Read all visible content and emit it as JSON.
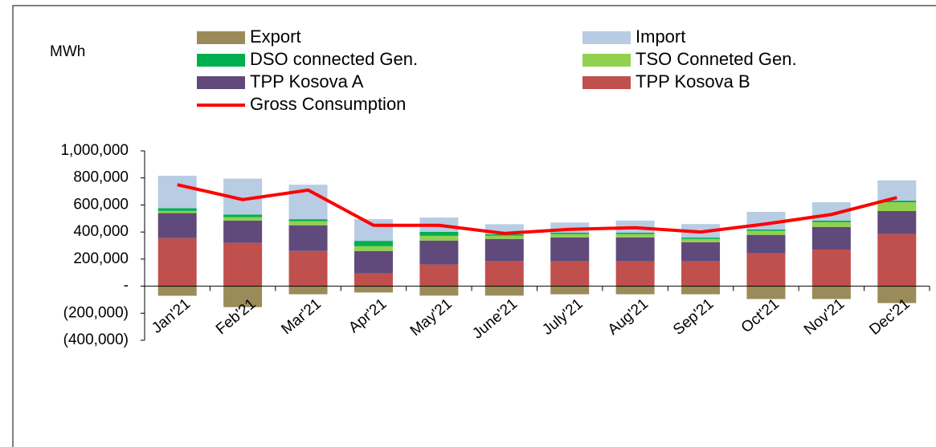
{
  "chart_data": {
    "type": "bar",
    "y_label": "MWh",
    "categories": [
      "Jan'21",
      "Feb'21",
      "Mar'21",
      "Apr'21",
      "May'21",
      "June'21",
      "July'21",
      "Aug'21",
      "Sep'21",
      "Oct'21",
      "Nov'21",
      "Dec'21"
    ],
    "series": [
      {
        "name": "Export",
        "color": "#9b8b5a",
        "values": [
          -71000,
          -155000,
          -60000,
          -47000,
          -70000,
          -70000,
          -60000,
          -60000,
          -60000,
          -95000,
          -95000,
          -125000
        ]
      },
      {
        "name": "Import",
        "color": "#b8cce4",
        "values": [
          240000,
          265000,
          255000,
          160000,
          105000,
          75000,
          75000,
          90000,
          100000,
          130000,
          135000,
          150000
        ]
      },
      {
        "name": "DSO connected Gen.",
        "color": "#00b050",
        "values": [
          20000,
          20000,
          15000,
          40000,
          30000,
          10000,
          10000,
          10000,
          10000,
          10000,
          12000,
          12000
        ]
      },
      {
        "name": "TSO Conneted Gen.",
        "color": "#92d050",
        "values": [
          16000,
          25000,
          30000,
          35000,
          35000,
          24000,
          24000,
          24000,
          24000,
          30000,
          35000,
          65000
        ]
      },
      {
        "name": "TPP Kosova A",
        "color": "#604a7b",
        "values": [
          185000,
          165000,
          190000,
          165000,
          177000,
          166000,
          178000,
          178000,
          142000,
          136000,
          168000,
          170000
        ]
      },
      {
        "name": "TPP Kosova B",
        "color": "#c0504d",
        "values": [
          355000,
          320000,
          260000,
          95000,
          160000,
          183000,
          183000,
          183000,
          183000,
          243000,
          270000,
          385000
        ]
      },
      {
        "name": "Gross Consumption",
        "type": "line",
        "color": "#ff0000",
        "values": [
          750000,
          640000,
          710000,
          450000,
          450000,
          390000,
          420000,
          432000,
          400000,
          460000,
          530000,
          655000
        ]
      }
    ],
    "ylim": [
      -400000,
      1000000
    ],
    "yticks": [
      {
        "value": -400000,
        "label": "(400,000)"
      },
      {
        "value": -200000,
        "label": "(200,000)"
      },
      {
        "value": 0,
        "label": "-"
      },
      {
        "value": 200000,
        "label": "200,000"
      },
      {
        "value": 400000,
        "label": "400,000"
      },
      {
        "value": 600000,
        "label": "600,000"
      },
      {
        "value": 800000,
        "label": "800,000"
      },
      {
        "value": 1000000,
        "label": "1,000,000"
      }
    ]
  }
}
